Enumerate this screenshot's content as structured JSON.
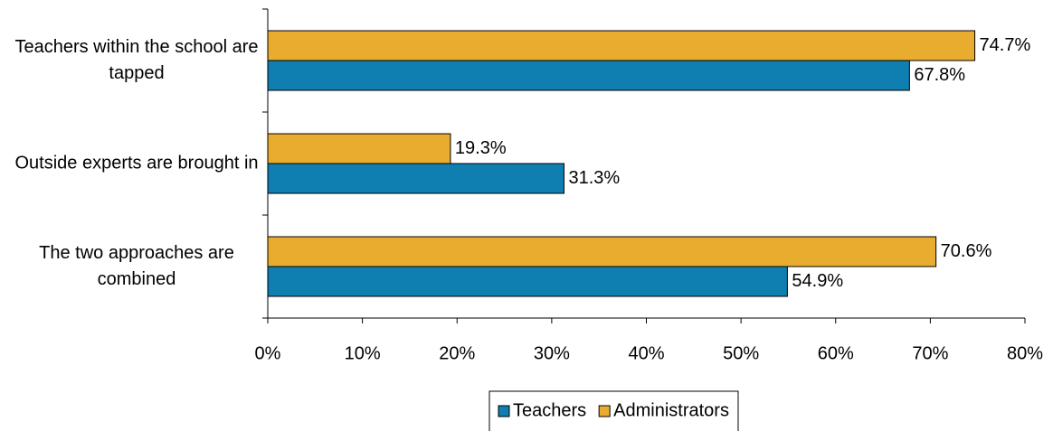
{
  "chart_data": {
    "type": "hbar",
    "categories": [
      "Teachers within the school are tapped",
      "Outside experts are brought in",
      "The two approaches are combined"
    ],
    "series": [
      {
        "name": "Teachers",
        "color": "#0f7eb0",
        "values": [
          67.8,
          31.3,
          54.9
        ],
        "value_labels": [
          "67.8%",
          "31.3%",
          "54.9%"
        ]
      },
      {
        "name": "Administrators",
        "color": "#e8ad2e",
        "values": [
          74.7,
          19.3,
          70.6
        ],
        "value_labels": [
          "74.7%",
          "19.3%",
          "70.6%"
        ]
      }
    ],
    "xlim": [
      0,
      80
    ],
    "xticks": [
      {
        "value": 0,
        "label": "0%"
      },
      {
        "value": 10,
        "label": "10%"
      },
      {
        "value": 20,
        "label": "20%"
      },
      {
        "value": 30,
        "label": "30%"
      },
      {
        "value": 40,
        "label": "40%"
      },
      {
        "value": 50,
        "label": "50%"
      },
      {
        "value": 60,
        "label": "60%"
      },
      {
        "value": 70,
        "label": "70%"
      },
      {
        "value": 80,
        "label": "80%"
      }
    ],
    "legend": "bottom"
  }
}
